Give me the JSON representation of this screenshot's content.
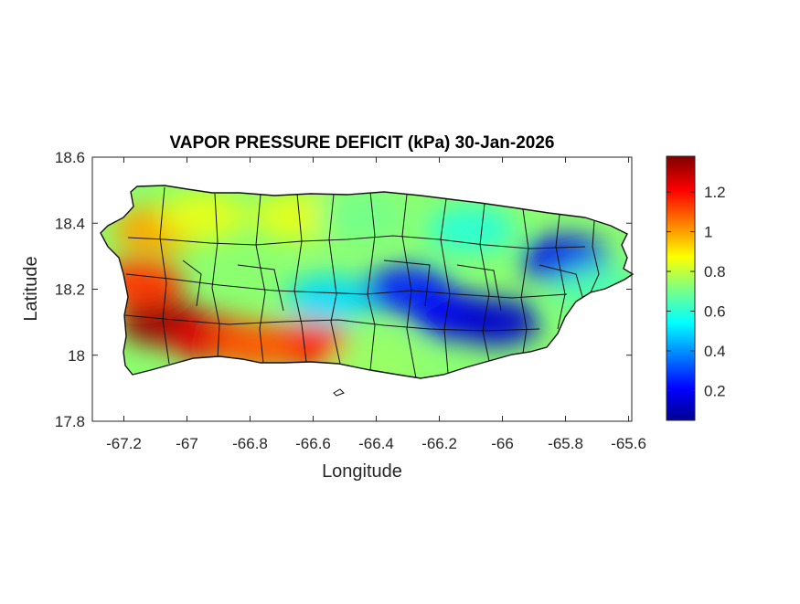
{
  "title": "VAPOR PRESSURE DEFICIT (kPa) 30-Jan-2026",
  "chart_data": {
    "type": "heatmap",
    "title": "VAPOR PRESSURE DEFICIT (kPa) 30-Jan-2026",
    "xlabel": "Longitude",
    "ylabel": "Latitude",
    "xlim": [
      -67.3,
      -65.59
    ],
    "ylim": [
      17.8,
      18.6
    ],
    "x_ticks": [
      -67.2,
      -67,
      -66.8,
      -66.6,
      -66.4,
      -66.2,
      -66,
      -65.8,
      -65.6
    ],
    "x_tick_labels": [
      "-67.2",
      "-67",
      "-66.8",
      "-66.6",
      "-66.4",
      "-66.2",
      "-66",
      "-65.8",
      "-65.6"
    ],
    "y_ticks": [
      17.8,
      18,
      18.2,
      18.4,
      18.6
    ],
    "y_tick_labels": [
      "17.8",
      "18",
      "18.2",
      "18.4",
      "18.6"
    ],
    "colormap": "jet",
    "colorbar": {
      "range": [
        0.05,
        1.38
      ],
      "ticks": [
        0.2,
        0.4,
        0.6,
        0.8,
        1,
        1.2
      ],
      "tick_labels": [
        "0.2",
        "0.4",
        "0.6",
        "0.8",
        "1",
        "1.2"
      ],
      "placement": "right"
    },
    "grid": false,
    "regions": [
      {
        "lon": -67.08,
        "lat": 18.1,
        "value": 1.35
      },
      {
        "lon": -66.92,
        "lat": 18.05,
        "value": 1.25
      },
      {
        "lon": -67.15,
        "lat": 18.22,
        "value": 1.15
      },
      {
        "lon": -66.62,
        "lat": 18.03,
        "value": 1.2
      },
      {
        "lon": -66.78,
        "lat": 18.03,
        "value": 1.1
      },
      {
        "lon": -67.1,
        "lat": 18.38,
        "value": 1.0
      },
      {
        "lon": -66.95,
        "lat": 18.42,
        "value": 0.85
      },
      {
        "lon": -66.65,
        "lat": 18.42,
        "value": 0.85
      },
      {
        "lon": -66.45,
        "lat": 18.42,
        "value": 0.7
      },
      {
        "lon": -66.55,
        "lat": 18.17,
        "value": 0.5
      },
      {
        "lon": -66.3,
        "lat": 18.2,
        "value": 0.25
      },
      {
        "lon": -66.15,
        "lat": 18.12,
        "value": 0.2
      },
      {
        "lon": -66.02,
        "lat": 18.1,
        "value": 0.15
      },
      {
        "lon": -65.8,
        "lat": 18.29,
        "value": 0.2
      },
      {
        "lon": -66.1,
        "lat": 18.38,
        "value": 0.6
      },
      {
        "lon": -65.7,
        "lat": 18.2,
        "value": 0.65
      },
      {
        "lon": -66.4,
        "lat": 17.98,
        "value": 0.75
      }
    ]
  }
}
